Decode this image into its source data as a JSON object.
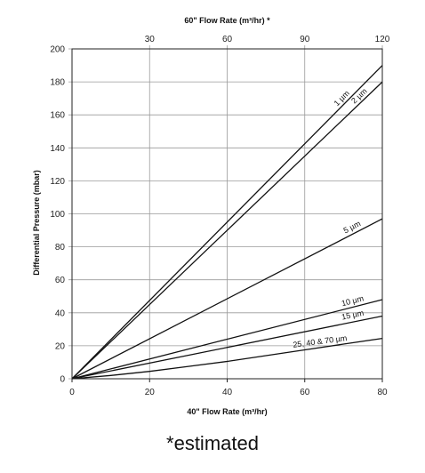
{
  "chart_data": {
    "type": "line",
    "title": "",
    "xlabel": "40\" Flow Rate (m³/hr)",
    "x2label": "60\" Flow Rate (m³/hr) *",
    "ylabel": "Differential Pressure (mbar)",
    "xlim": [
      0,
      80
    ],
    "x2lim": [
      0,
      120
    ],
    "ylim": [
      0,
      200
    ],
    "xticks": [
      0,
      20,
      40,
      60,
      80
    ],
    "x2ticks": [
      30,
      60,
      90,
      120
    ],
    "yticks": [
      0,
      20,
      40,
      60,
      80,
      100,
      120,
      140,
      160,
      180,
      200
    ],
    "grid": true,
    "series": [
      {
        "name": "1 µm",
        "x": [
          0,
          80
        ],
        "y": [
          0,
          190
        ]
      },
      {
        "name": "2 µm",
        "x": [
          0,
          80
        ],
        "y": [
          0,
          180
        ]
      },
      {
        "name": "5 µm",
        "x": [
          0,
          80
        ],
        "y": [
          0,
          97
        ]
      },
      {
        "name": "10 µm",
        "x": [
          0,
          80
        ],
        "y": [
          0,
          48
        ]
      },
      {
        "name": "15 µm",
        "x": [
          0,
          80
        ],
        "y": [
          0,
          38
        ]
      },
      {
        "name": "25, 40 & 70 µm",
        "x": [
          0,
          10,
          20,
          30,
          40,
          50,
          60,
          70,
          80
        ],
        "y": [
          0,
          2,
          4.5,
          7.5,
          10.5,
          14,
          17.5,
          21,
          24.5
        ]
      }
    ],
    "footnote": "*estimated"
  }
}
